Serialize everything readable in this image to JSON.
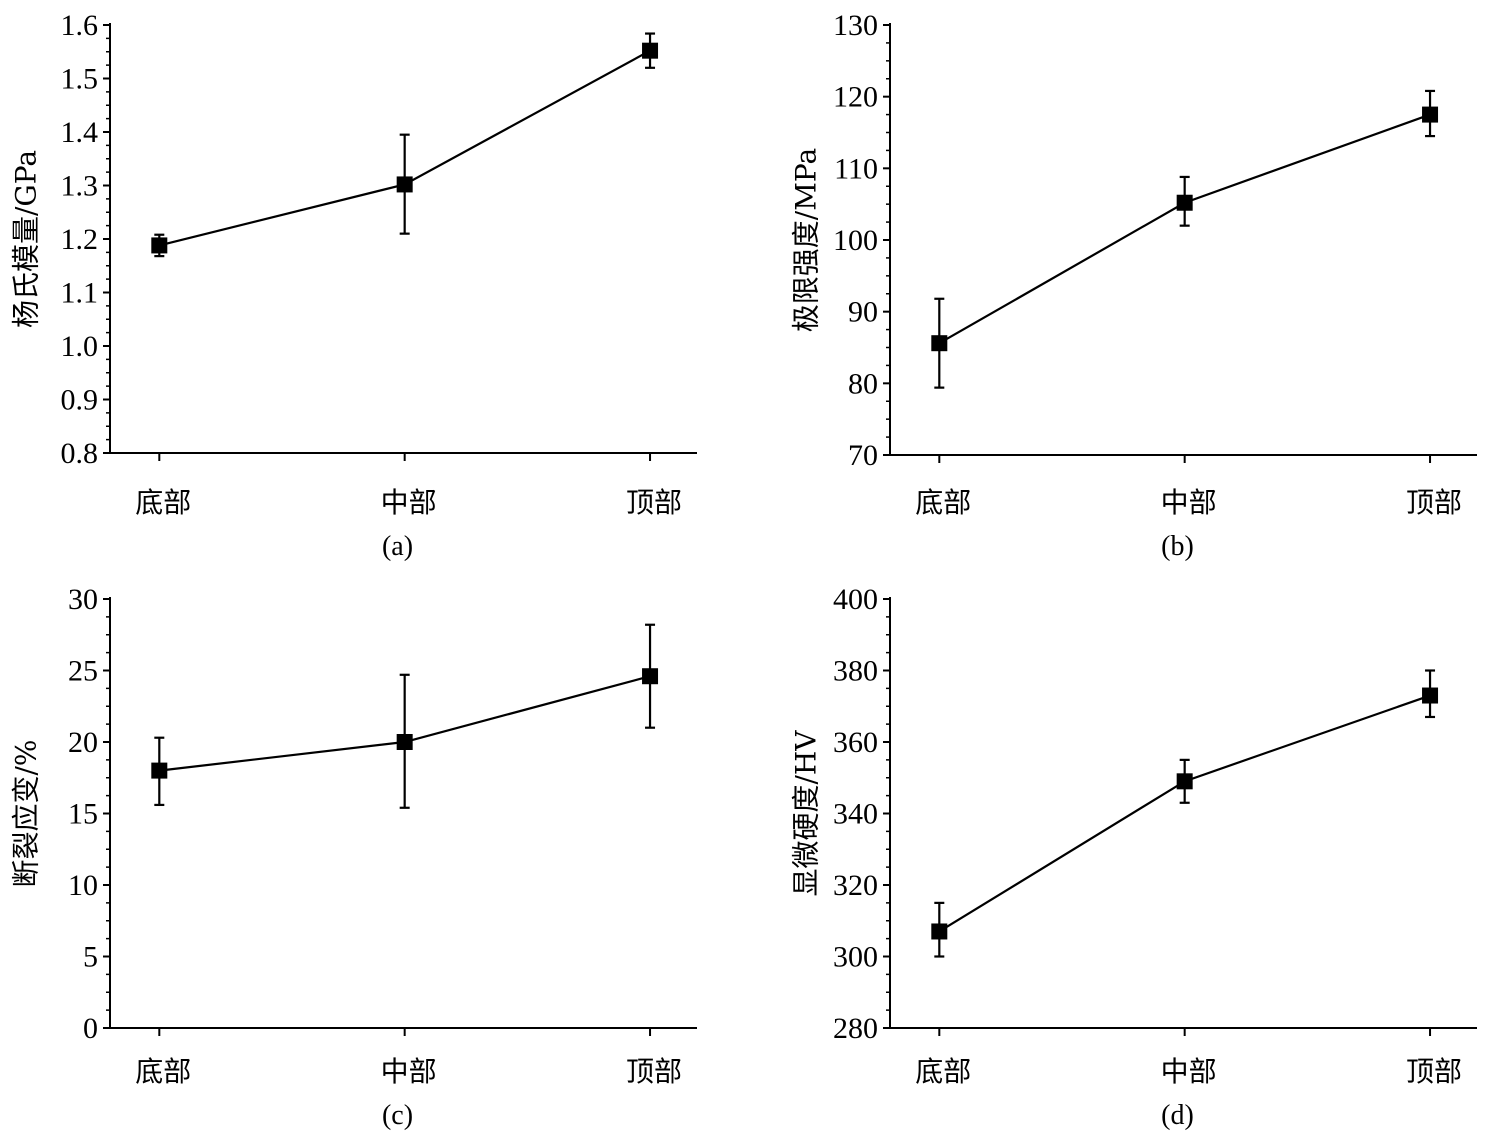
{
  "chart_data": [
    {
      "type": "line",
      "panel_label": "(a)",
      "categories": [
        "底部",
        "中部",
        "顶部"
      ],
      "ylabel": "杨氏模量/GPa",
      "ylim": [
        0.8,
        1.6
      ],
      "yticks": [
        "0.8",
        "0.9",
        "1.0",
        "1.1",
        "1.2",
        "1.3",
        "1.4",
        "1.5",
        "1.6"
      ],
      "series": [
        {
          "values": [
            1.188,
            1.302,
            1.552
          ],
          "err_low": [
            1.168,
            1.21,
            1.52
          ],
          "err_high": [
            1.208,
            1.395,
            1.584
          ]
        }
      ]
    },
    {
      "type": "line",
      "panel_label": "(b)",
      "categories": [
        "底部",
        "中部",
        "顶部"
      ],
      "ylabel": "极限强度/MPa",
      "ylim": [
        70,
        130
      ],
      "yticks": [
        "70",
        "80",
        "90",
        "100",
        "110",
        "120",
        "130"
      ],
      "series": [
        {
          "values": [
            85.6,
            105.2,
            117.5
          ],
          "err_low": [
            79.4,
            102.0,
            114.5
          ],
          "err_high": [
            91.8,
            108.8,
            120.8
          ]
        }
      ]
    },
    {
      "type": "line",
      "panel_label": "(c)",
      "categories": [
        "底部",
        "中部",
        "顶部"
      ],
      "ylabel": "断裂应变/%",
      "ylim": [
        0,
        30
      ],
      "yticks": [
        "0",
        "5",
        "10",
        "15",
        "20",
        "25",
        "30"
      ],
      "series": [
        {
          "values": [
            18.0,
            20.0,
            24.6
          ],
          "err_low": [
            15.6,
            15.4,
            21.0
          ],
          "err_high": [
            20.3,
            24.7,
            28.2
          ]
        }
      ]
    },
    {
      "type": "line",
      "panel_label": "(d)",
      "categories": [
        "底部",
        "中部",
        "顶部"
      ],
      "ylabel": "显微硬度/HV",
      "ylim": [
        280,
        400
      ],
      "yticks": [
        "280",
        "300",
        "320",
        "340",
        "360",
        "380",
        "400"
      ],
      "series": [
        {
          "values": [
            307,
            349,
            373
          ],
          "err_low": [
            300,
            343,
            367
          ],
          "err_high": [
            315,
            355,
            380
          ]
        }
      ]
    }
  ],
  "colors": {
    "ink": "#000000",
    "background": "#ffffff"
  }
}
